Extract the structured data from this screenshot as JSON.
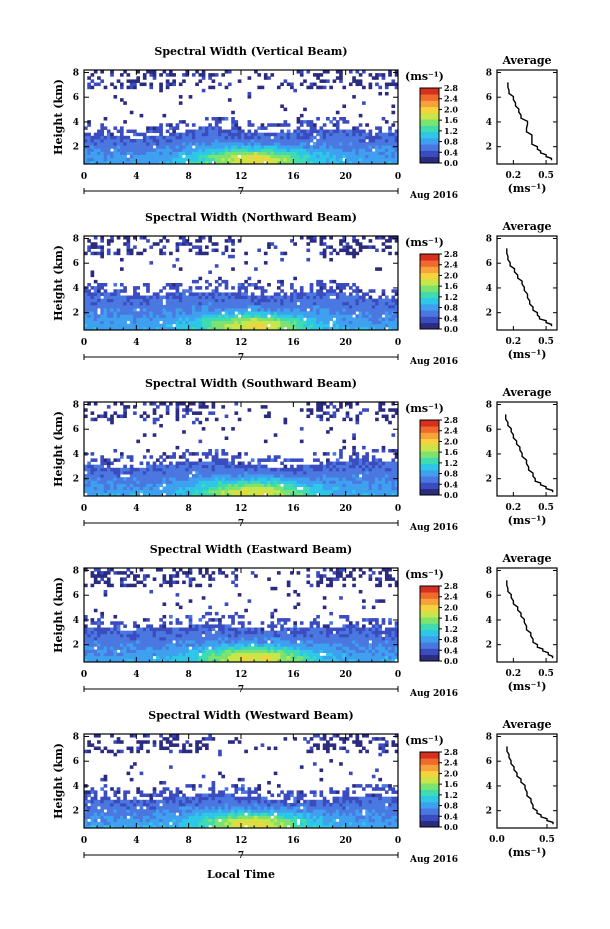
{
  "figure": {
    "xlabel_bottom": "Local Time",
    "x_ticks": [
      "0",
      "4",
      "8",
      "12",
      "16",
      "20",
      "0"
    ],
    "x_date_marker": "7",
    "x_month_label": "Aug 2016",
    "y_label": "Height (km)",
    "y_ticks": [
      "2",
      "4",
      "6",
      "8"
    ],
    "colorbar_unit": "(ms⁻¹)",
    "colorbar_ticks": [
      "0.0",
      "0.4",
      "0.8",
      "1.2",
      "1.6",
      "2.0",
      "2.4",
      "2.8"
    ],
    "avg_title": "Average",
    "avg_xlabel": "(ms⁻¹)",
    "avg_y_ticks": [
      "2",
      "4",
      "6",
      "8"
    ],
    "colors": [
      "#2b2b80",
      "#3b4cc0",
      "#4a78e0",
      "#3fa0f0",
      "#2ec7e8",
      "#3fdcb0",
      "#7ee36e",
      "#c8e64a",
      "#f6d23c",
      "#f9a13a",
      "#ef6a2c",
      "#d7301f"
    ]
  },
  "chart_data": [
    {
      "type": "heatmap",
      "title": "Spectral Width (Vertical Beam)",
      "xlabel": "",
      "ylabel": "Height (km)",
      "units": "ms⁻¹",
      "xlim": [
        0,
        24
      ],
      "ylim": [
        0.6,
        8.2
      ],
      "clim": [
        0.0,
        2.8
      ],
      "dense_layer_top_km": [
        3.0,
        2.9,
        2.7,
        2.9,
        3.3,
        3.6,
        3.3,
        3.0,
        3.2,
        3.4,
        3.4,
        3.0,
        3.1
      ],
      "average_profile": {
        "xlabel": "(ms⁻¹)",
        "x_ticks": [
          "0.2",
          "0.5"
        ],
        "xlim": [
          0.05,
          0.6
        ],
        "ylim": [
          0.6,
          8.2
        ],
        "height_km": [
          0.9,
          1.2,
          1.5,
          1.8,
          2.2,
          2.7,
          3.2,
          3.8,
          4.3,
          4.8,
          5.3,
          5.8,
          6.3,
          6.8,
          7.2
        ],
        "width_ms": [
          0.55,
          0.5,
          0.45,
          0.42,
          0.37,
          0.37,
          0.32,
          0.33,
          0.27,
          0.25,
          0.22,
          0.2,
          0.16,
          0.15,
          0.15
        ]
      }
    },
    {
      "type": "heatmap",
      "title": "Spectral Width (Northward Beam)",
      "xlabel": "",
      "ylabel": "Height (km)",
      "units": "ms⁻¹",
      "xlim": [
        0,
        24
      ],
      "ylim": [
        0.6,
        8.2
      ],
      "clim": [
        0.0,
        2.8
      ],
      "dense_layer_top_km": [
        3.6,
        3.6,
        3.4,
        3.5,
        3.6,
        3.8,
        3.6,
        3.3,
        3.5,
        3.8,
        3.5,
        3.2,
        3.1
      ],
      "average_profile": {
        "xlabel": "(ms⁻¹)",
        "x_ticks": [
          "0.2",
          "0.5"
        ],
        "xlim": [
          0.05,
          0.6
        ],
        "ylim": [
          0.6,
          8.2
        ],
        "height_km": [
          0.9,
          1.2,
          1.5,
          1.8,
          2.2,
          2.7,
          3.2,
          3.8,
          4.3,
          4.8,
          5.3,
          5.8,
          6.3,
          6.8,
          7.2
        ],
        "width_ms": [
          0.55,
          0.5,
          0.44,
          0.42,
          0.38,
          0.35,
          0.33,
          0.3,
          0.28,
          0.24,
          0.21,
          0.17,
          0.15,
          0.14,
          0.14
        ]
      }
    },
    {
      "type": "heatmap",
      "title": "Spectral Width (Southward Beam)",
      "xlabel": "",
      "ylabel": "Height (km)",
      "units": "ms⁻¹",
      "xlim": [
        0,
        24
      ],
      "ylim": [
        0.6,
        8.2
      ],
      "clim": [
        0.0,
        2.8
      ],
      "dense_layer_top_km": [
        3.2,
        3.0,
        2.9,
        3.2,
        3.4,
        3.5,
        3.2,
        3.0,
        2.8,
        3.2,
        3.5,
        3.6,
        3.4
      ],
      "average_profile": {
        "xlabel": "(ms⁻¹)",
        "x_ticks": [
          "0.2",
          "0.5"
        ],
        "xlim": [
          0.05,
          0.6
        ],
        "ylim": [
          0.6,
          8.2
        ],
        "height_km": [
          0.9,
          1.2,
          1.5,
          1.8,
          2.2,
          2.7,
          3.2,
          3.8,
          4.3,
          4.8,
          5.3,
          5.8,
          6.3,
          6.8,
          7.2
        ],
        "width_ms": [
          0.56,
          0.5,
          0.45,
          0.4,
          0.38,
          0.34,
          0.32,
          0.28,
          0.26,
          0.23,
          0.2,
          0.18,
          0.15,
          0.13,
          0.13
        ]
      }
    },
    {
      "type": "heatmap",
      "title": "Spectral Width (Eastward Beam)",
      "xlabel": "",
      "ylabel": "Height (km)",
      "units": "ms⁻¹",
      "xlim": [
        0,
        24
      ],
      "ylim": [
        0.6,
        8.2
      ],
      "clim": [
        0.0,
        2.8
      ],
      "dense_layer_top_km": [
        3.4,
        3.3,
        3.2,
        3.4,
        3.5,
        3.7,
        3.4,
        3.2,
        3.3,
        3.5,
        3.4,
        3.3,
        3.2
      ],
      "average_profile": {
        "xlabel": "(ms⁻¹)",
        "x_ticks": [
          "0.2",
          "0.5"
        ],
        "xlim": [
          0.05,
          0.6
        ],
        "ylim": [
          0.6,
          8.2
        ],
        "height_km": [
          0.9,
          1.2,
          1.5,
          1.8,
          2.2,
          2.7,
          3.2,
          3.8,
          4.3,
          4.8,
          5.3,
          5.8,
          6.3,
          6.8,
          7.2
        ],
        "width_ms": [
          0.56,
          0.52,
          0.47,
          0.42,
          0.38,
          0.36,
          0.32,
          0.3,
          0.27,
          0.24,
          0.2,
          0.18,
          0.15,
          0.14,
          0.14
        ]
      }
    },
    {
      "type": "heatmap",
      "title": "Spectral Width (Westward Beam)",
      "xlabel": "Local Time",
      "ylabel": "Height (km)",
      "units": "ms⁻¹",
      "xlim": [
        0,
        24
      ],
      "ylim": [
        0.6,
        8.2
      ],
      "clim": [
        0.0,
        2.8
      ],
      "dense_layer_top_km": [
        3.0,
        3.0,
        2.8,
        3.0,
        3.2,
        3.4,
        3.2,
        2.9,
        2.7,
        2.8,
        3.1,
        3.2,
        3.1
      ],
      "average_profile": {
        "xlabel": "(ms⁻¹)",
        "x_ticks": [
          "0.0",
          "0.5"
        ],
        "xlim": [
          0.0,
          0.6
        ],
        "ylim": [
          0.6,
          8.2
        ],
        "height_km": [
          0.9,
          1.2,
          1.5,
          1.8,
          2.2,
          2.7,
          3.2,
          3.8,
          4.3,
          4.8,
          5.3,
          5.8,
          6.3,
          6.8,
          7.2
        ],
        "width_ms": [
          0.56,
          0.5,
          0.44,
          0.4,
          0.36,
          0.34,
          0.3,
          0.28,
          0.24,
          0.2,
          0.17,
          0.14,
          0.12,
          0.1,
          0.1
        ]
      }
    }
  ]
}
